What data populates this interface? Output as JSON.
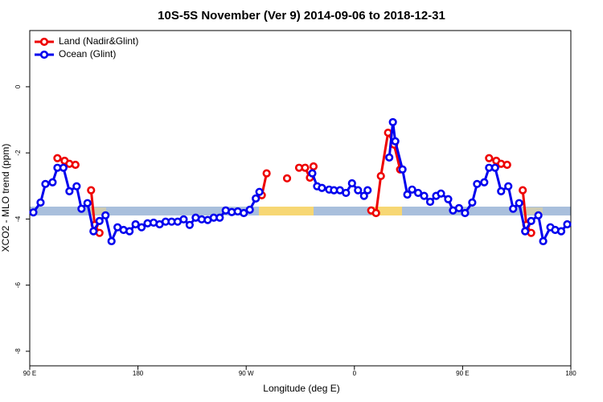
{
  "chart_data": {
    "type": "line",
    "title": "10S-5S November (Ver 9)   2014-09-06 to 2018-12-31",
    "xlabel": "Longitude (deg E)",
    "ylabel": "XCO2 - MLO trend (ppm)",
    "xlim": [
      90,
      540
    ],
    "ylim": [
      -8.44,
      1.7
    ],
    "xticks": [
      {
        "value": 90,
        "label": "90 E"
      },
      180,
      {
        "value": 270,
        "label": "90 W"
      },
      {
        "value": 360,
        "label": "0"
      },
      {
        "value": 450,
        "label": "90 E"
      },
      {
        "value": 540,
        "label": "180"
      }
    ],
    "yticks": [
      0,
      -2,
      -4,
      -6,
      -8
    ],
    "legend": "top-left",
    "series": [
      {
        "name": "Land (Nadir&Glint)",
        "color": "#ee0000",
        "x": [
          113,
          119,
          123,
          128,
          null,
          141,
          144,
          148,
          null,
          283,
          287,
          null,
          304,
          null,
          314,
          319,
          323,
          326,
          null,
          374,
          378,
          382,
          388,
          393,
          398,
          null,
          472,
          478,
          482,
          487,
          null,
          500,
          503,
          507
        ],
        "values": [
          -2.16,
          -2.24,
          -2.33,
          -2.36,
          null,
          -3.13,
          -4.18,
          -4.42,
          null,
          -3.28,
          -2.62,
          null,
          -2.77,
          null,
          -2.45,
          -2.45,
          -2.75,
          -2.41,
          null,
          -3.74,
          -3.82,
          -2.7,
          -1.39,
          -1.75,
          -2.5,
          null,
          -2.16,
          -2.24,
          -2.33,
          -2.36,
          null,
          -3.13,
          -4.18,
          -4.42
        ]
      },
      {
        "name": "Ocean (Glint)",
        "color": "#0000ee",
        "x": [
          93,
          99,
          103,
          109,
          113,
          118,
          123,
          129,
          133,
          138,
          143,
          148,
          153,
          158,
          163,
          168,
          173,
          178,
          183,
          188,
          193,
          198,
          203,
          208,
          213,
          218,
          223,
          228,
          233,
          238,
          243,
          248,
          253,
          258,
          263,
          268,
          273,
          278,
          281,
          null,
          325,
          329,
          333,
          339,
          343,
          348,
          353,
          358,
          363,
          368,
          371,
          null,
          389,
          392,
          394,
          400,
          404,
          408,
          413,
          418,
          423,
          428,
          432,
          438,
          442,
          447,
          452,
          458,
          462,
          468,
          472,
          477,
          482,
          488,
          492,
          497,
          502,
          507,
          513,
          517,
          523,
          527,
          532,
          537
        ],
        "values": [
          -3.8,
          -3.5,
          -2.94,
          -2.89,
          -2.45,
          -2.45,
          -3.16,
          -3.01,
          -3.69,
          -3.52,
          -4.37,
          -4.06,
          -3.89,
          -4.67,
          -4.25,
          -4.33,
          -4.37,
          -4.16,
          -4.25,
          -4.13,
          -4.11,
          -4.16,
          -4.08,
          -4.08,
          -4.08,
          -4.01,
          -4.18,
          -3.96,
          -4.01,
          -4.03,
          -3.96,
          -3.96,
          -3.74,
          -3.79,
          -3.77,
          -3.82,
          -3.72,
          -3.38,
          -3.18,
          null,
          -2.62,
          -3.01,
          -3.06,
          -3.11,
          -3.13,
          -3.13,
          -3.21,
          -2.92,
          -3.13,
          -3.3,
          -3.13,
          null,
          -2.14,
          -1.07,
          -1.65,
          -2.5,
          -3.26,
          -3.11,
          -3.21,
          -3.3,
          -3.48,
          -3.3,
          -3.23,
          -3.4,
          -3.74,
          -3.67,
          -3.82,
          -3.5,
          -2.94,
          -2.89,
          -2.45,
          -2.45,
          -3.16,
          -3.01,
          -3.69,
          -3.52,
          -4.37,
          -4.06,
          -3.89,
          -4.67,
          -4.25,
          -4.33,
          -4.37,
          -4.16
        ]
      }
    ]
  }
}
